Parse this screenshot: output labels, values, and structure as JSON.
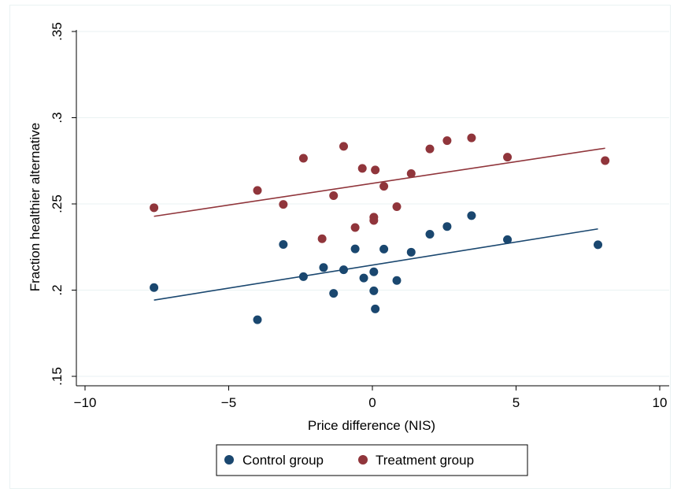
{
  "chart_data": {
    "type": "scatter",
    "xlabel": "Price difference (NIS)",
    "ylabel": "Fraction healthier alternative",
    "xlim": [
      -10,
      10
    ],
    "ylim": [
      0.15,
      0.35
    ],
    "x_ticks": [
      -10,
      -5,
      0,
      5,
      10
    ],
    "x_tick_labels": [
      "−10",
      "−5",
      "0",
      "5",
      "10"
    ],
    "y_ticks": [
      0.15,
      0.2,
      0.25,
      0.3,
      0.35
    ],
    "y_tick_labels": [
      ".15",
      ".2",
      ".25",
      ".3",
      ".35"
    ],
    "grid": "horizontal",
    "legend_position": "bottom",
    "series": [
      {
        "name": "Control group",
        "color": "#1a476f",
        "points": [
          [
            -7.6,
            0.2015
          ],
          [
            -4.0,
            0.1828
          ],
          [
            -3.1,
            0.2265
          ],
          [
            -2.4,
            0.2078
          ],
          [
            -1.7,
            0.2131
          ],
          [
            -1.35,
            0.1981
          ],
          [
            -1.0,
            0.2118
          ],
          [
            -0.6,
            0.2239
          ],
          [
            -0.3,
            0.207
          ],
          [
            0.05,
            0.2106
          ],
          [
            0.05,
            0.1996
          ],
          [
            0.1,
            0.1891
          ],
          [
            0.4,
            0.2238
          ],
          [
            0.85,
            0.2056
          ],
          [
            1.35,
            0.222
          ],
          [
            2.0,
            0.2324
          ],
          [
            2.6,
            0.2369
          ],
          [
            3.45,
            0.2432
          ],
          [
            4.7,
            0.2293
          ],
          [
            7.85,
            0.2263
          ]
        ],
        "fit": [
          [
            -7.6,
            0.1942
          ],
          [
            7.85,
            0.2355
          ]
        ]
      },
      {
        "name": "Treatment group",
        "color": "#90353b",
        "points": [
          [
            -7.6,
            0.2478
          ],
          [
            -4.0,
            0.2578
          ],
          [
            -3.1,
            0.2497
          ],
          [
            -2.4,
            0.2765
          ],
          [
            -1.75,
            0.2298
          ],
          [
            -1.35,
            0.2548
          ],
          [
            -1.0,
            0.2834
          ],
          [
            -0.6,
            0.2363
          ],
          [
            -0.35,
            0.2706
          ],
          [
            0.05,
            0.2423
          ],
          [
            0.05,
            0.2404
          ],
          [
            0.1,
            0.2697
          ],
          [
            0.4,
            0.2602
          ],
          [
            0.85,
            0.2484
          ],
          [
            1.35,
            0.2676
          ],
          [
            2.0,
            0.2819
          ],
          [
            2.6,
            0.2867
          ],
          [
            3.45,
            0.2883
          ],
          [
            4.7,
            0.2771
          ],
          [
            8.1,
            0.2751
          ]
        ],
        "fit": [
          [
            -7.6,
            0.2428
          ],
          [
            8.1,
            0.2823
          ]
        ]
      }
    ]
  }
}
